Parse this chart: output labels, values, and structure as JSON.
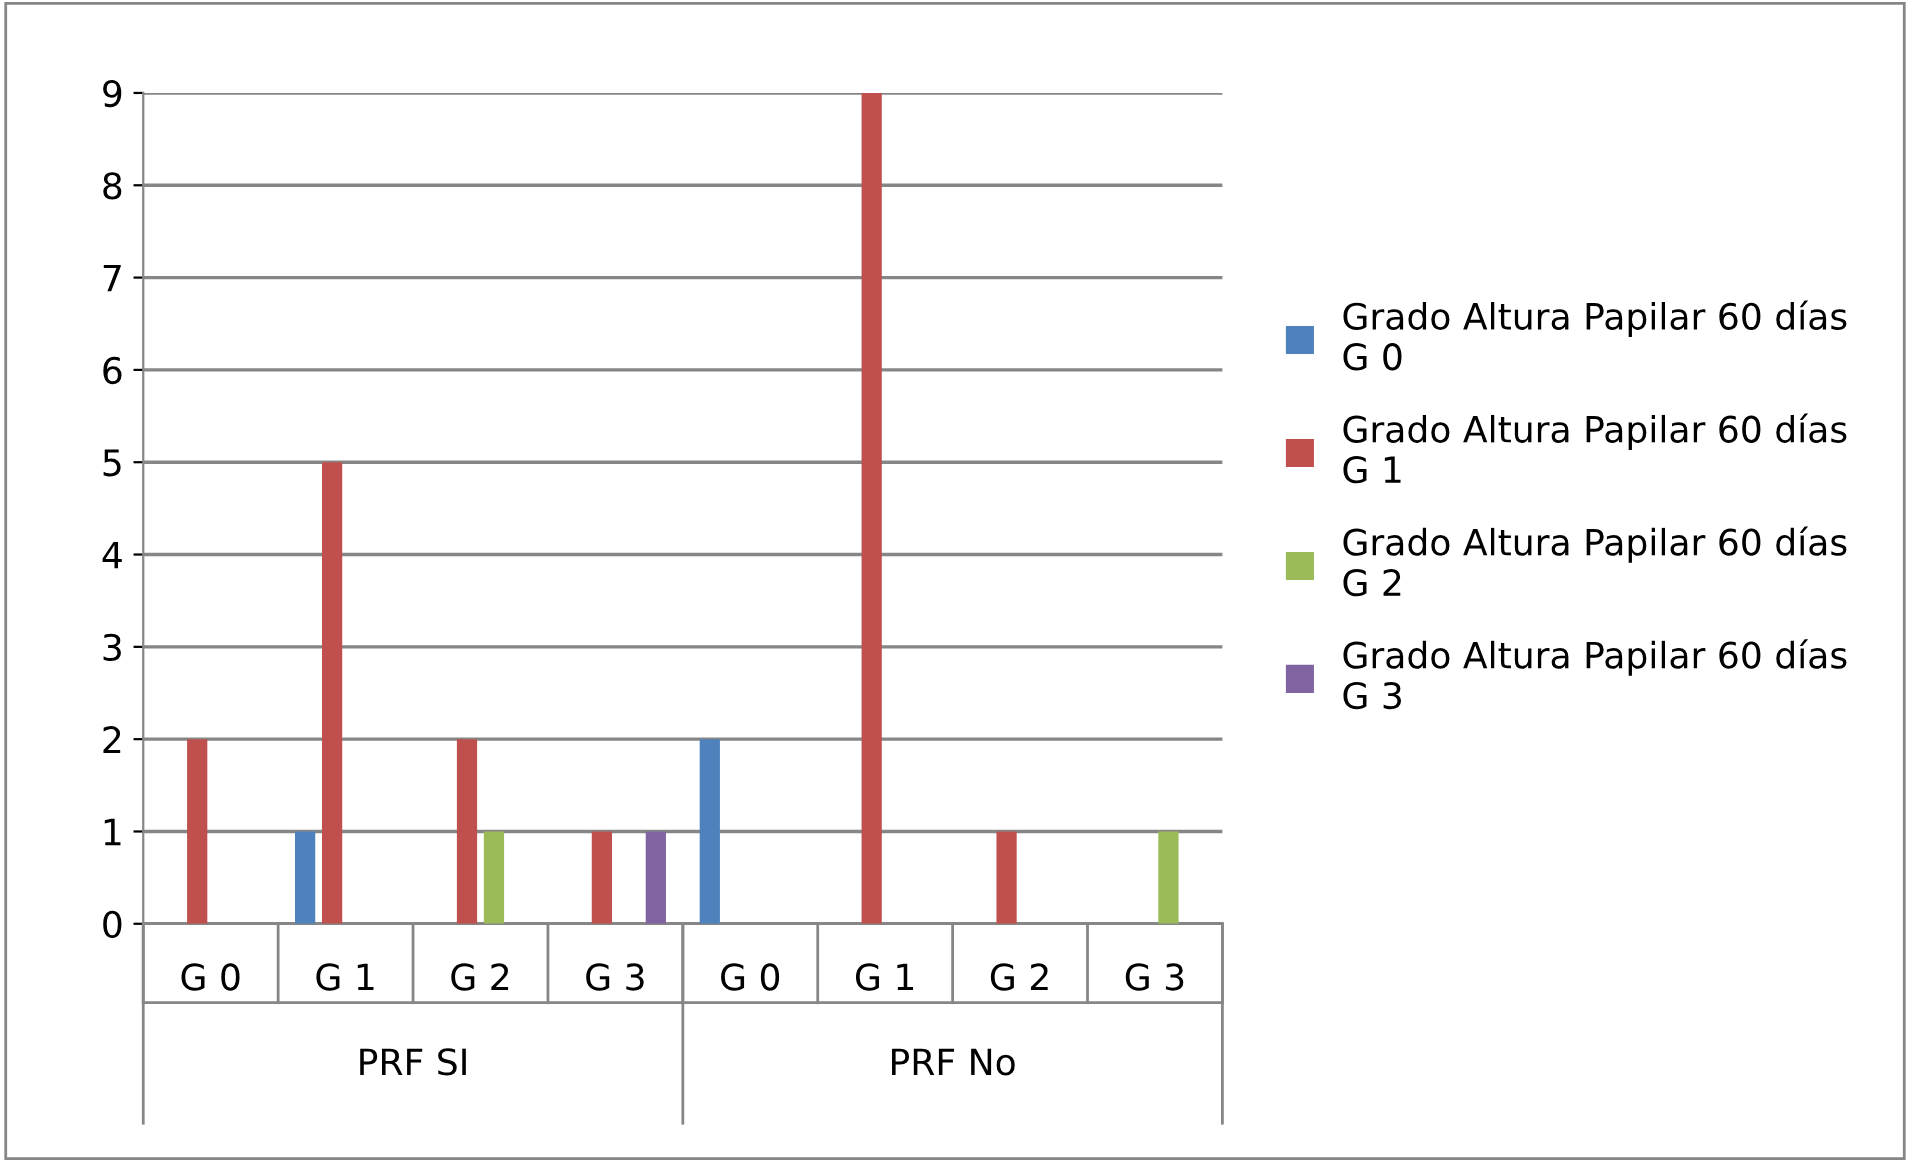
{
  "chart_data": {
    "type": "bar",
    "categories": [
      "G 0",
      "G 1",
      "G 2",
      "G 3",
      "G 0",
      "G 1",
      "G 2",
      "G 3"
    ],
    "series": [
      {
        "name": "Grado Altura Papilar 60 días G 0",
        "color": "#4f81bd",
        "values": [
          0,
          1,
          0,
          0,
          2,
          0,
          0,
          0
        ]
      },
      {
        "name": "Grado Altura Papilar 60 días G 1",
        "color": "#c0504d",
        "values": [
          2,
          5,
          2,
          1,
          0,
          9,
          1,
          0
        ]
      },
      {
        "name": "Grado Altura Papilar 60 días G 2",
        "color": "#9bbb59",
        "values": [
          0,
          0,
          1,
          0,
          0,
          0,
          0,
          1
        ]
      },
      {
        "name": "Grado Altura Papilar 60 días G 3",
        "color": "#8064a2",
        "values": [
          0,
          0,
          0,
          1,
          0,
          0,
          0,
          0
        ]
      }
    ],
    "annotations": [
      "PRF SI",
      "PRF No"
    ],
    "ylim": [
      0,
      9
    ],
    "yticks": [
      0,
      1,
      2,
      3,
      4,
      5,
      6,
      7,
      8,
      9
    ],
    "grid": "y",
    "legend": "right"
  }
}
